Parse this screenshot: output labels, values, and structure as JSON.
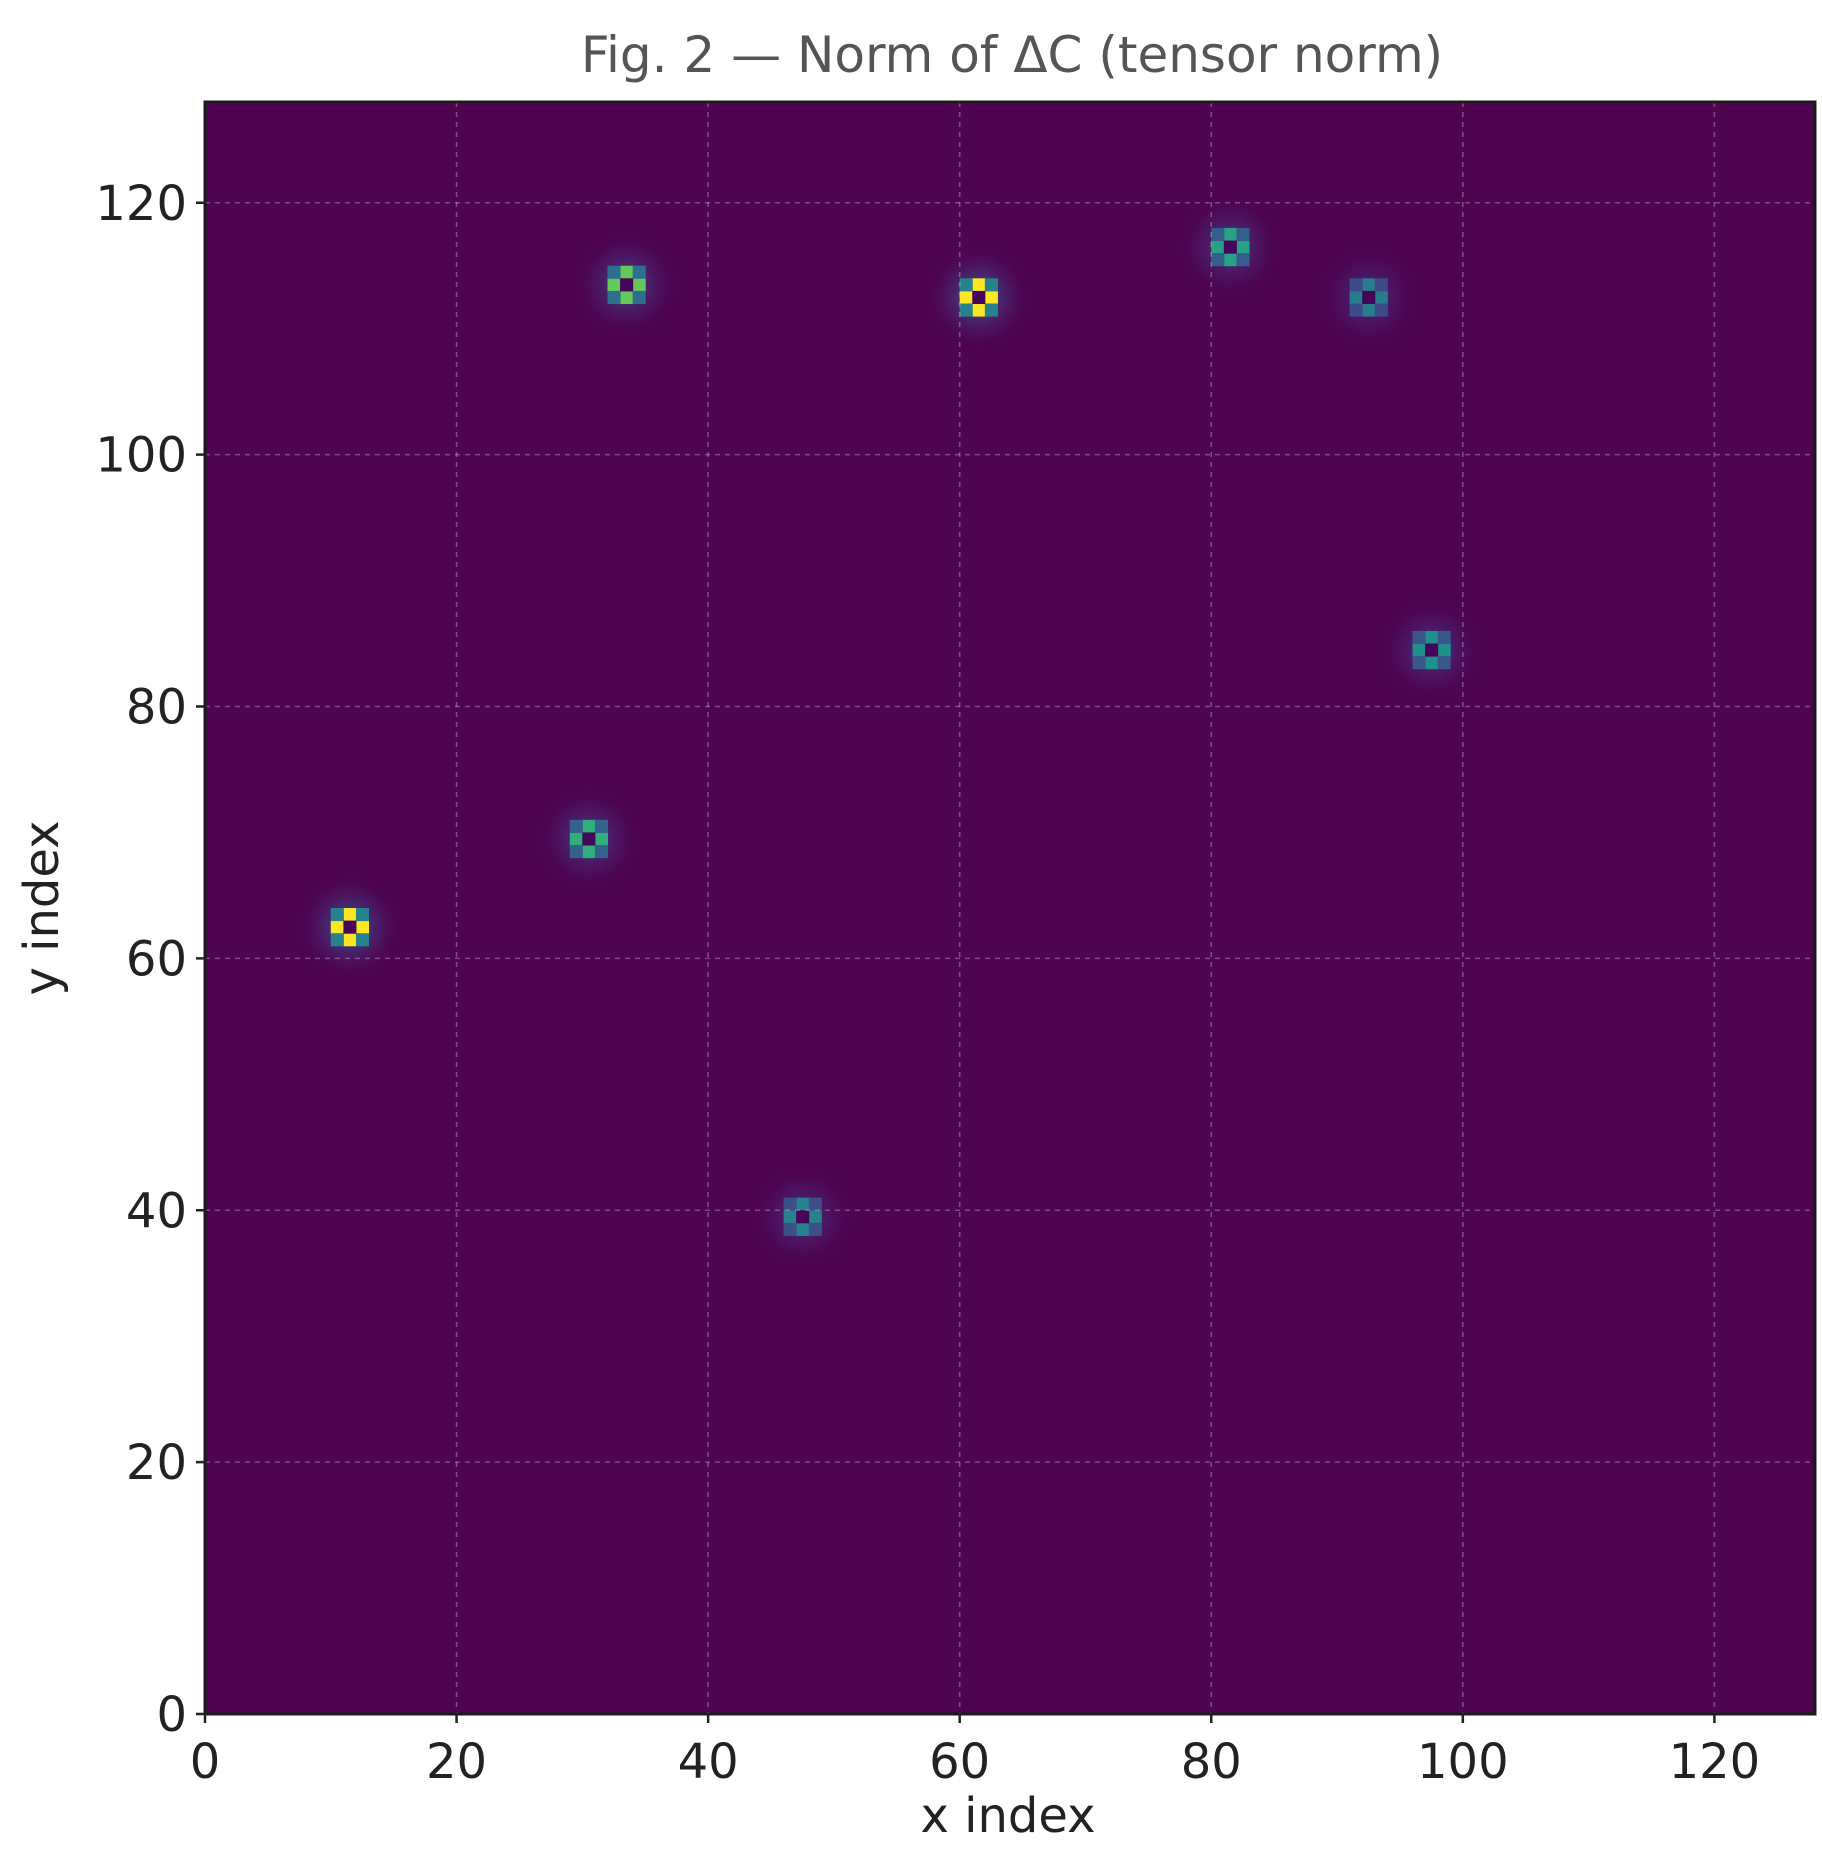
{
  "chart_data": {
    "type": "heatmap",
    "title": "Fig. 2 — Norm of ΔC (tensor norm)",
    "xlabel": "x index",
    "ylabel": "y index",
    "xlim": [
      0,
      128
    ],
    "ylim": [
      0,
      128
    ],
    "xticks": [
      0,
      20,
      40,
      60,
      80,
      100,
      120
    ],
    "yticks": [
      0,
      20,
      40,
      60,
      80,
      100,
      120
    ],
    "grid": true,
    "colormap": "viridis",
    "colors": {
      "background": "#4e0451",
      "frame": "#1a1a1a",
      "peak_high": "#fde725",
      "peak_mid": "#21a784",
      "peak_low": "#2c8c8c"
    },
    "peaks": [
      {
        "x": 11,
        "y": 62,
        "amplitude": 1.0
      },
      {
        "x": 30,
        "y": 69,
        "amplitude": 0.72
      },
      {
        "x": 33,
        "y": 113,
        "amplitude": 0.82
      },
      {
        "x": 47,
        "y": 39,
        "amplitude": 0.55
      },
      {
        "x": 61,
        "y": 112,
        "amplitude": 1.0
      },
      {
        "x": 81,
        "y": 116,
        "amplitude": 0.68
      },
      {
        "x": 92,
        "y": 112,
        "amplitude": 0.52
      },
      {
        "x": 97,
        "y": 84,
        "amplitude": 0.62
      }
    ]
  }
}
